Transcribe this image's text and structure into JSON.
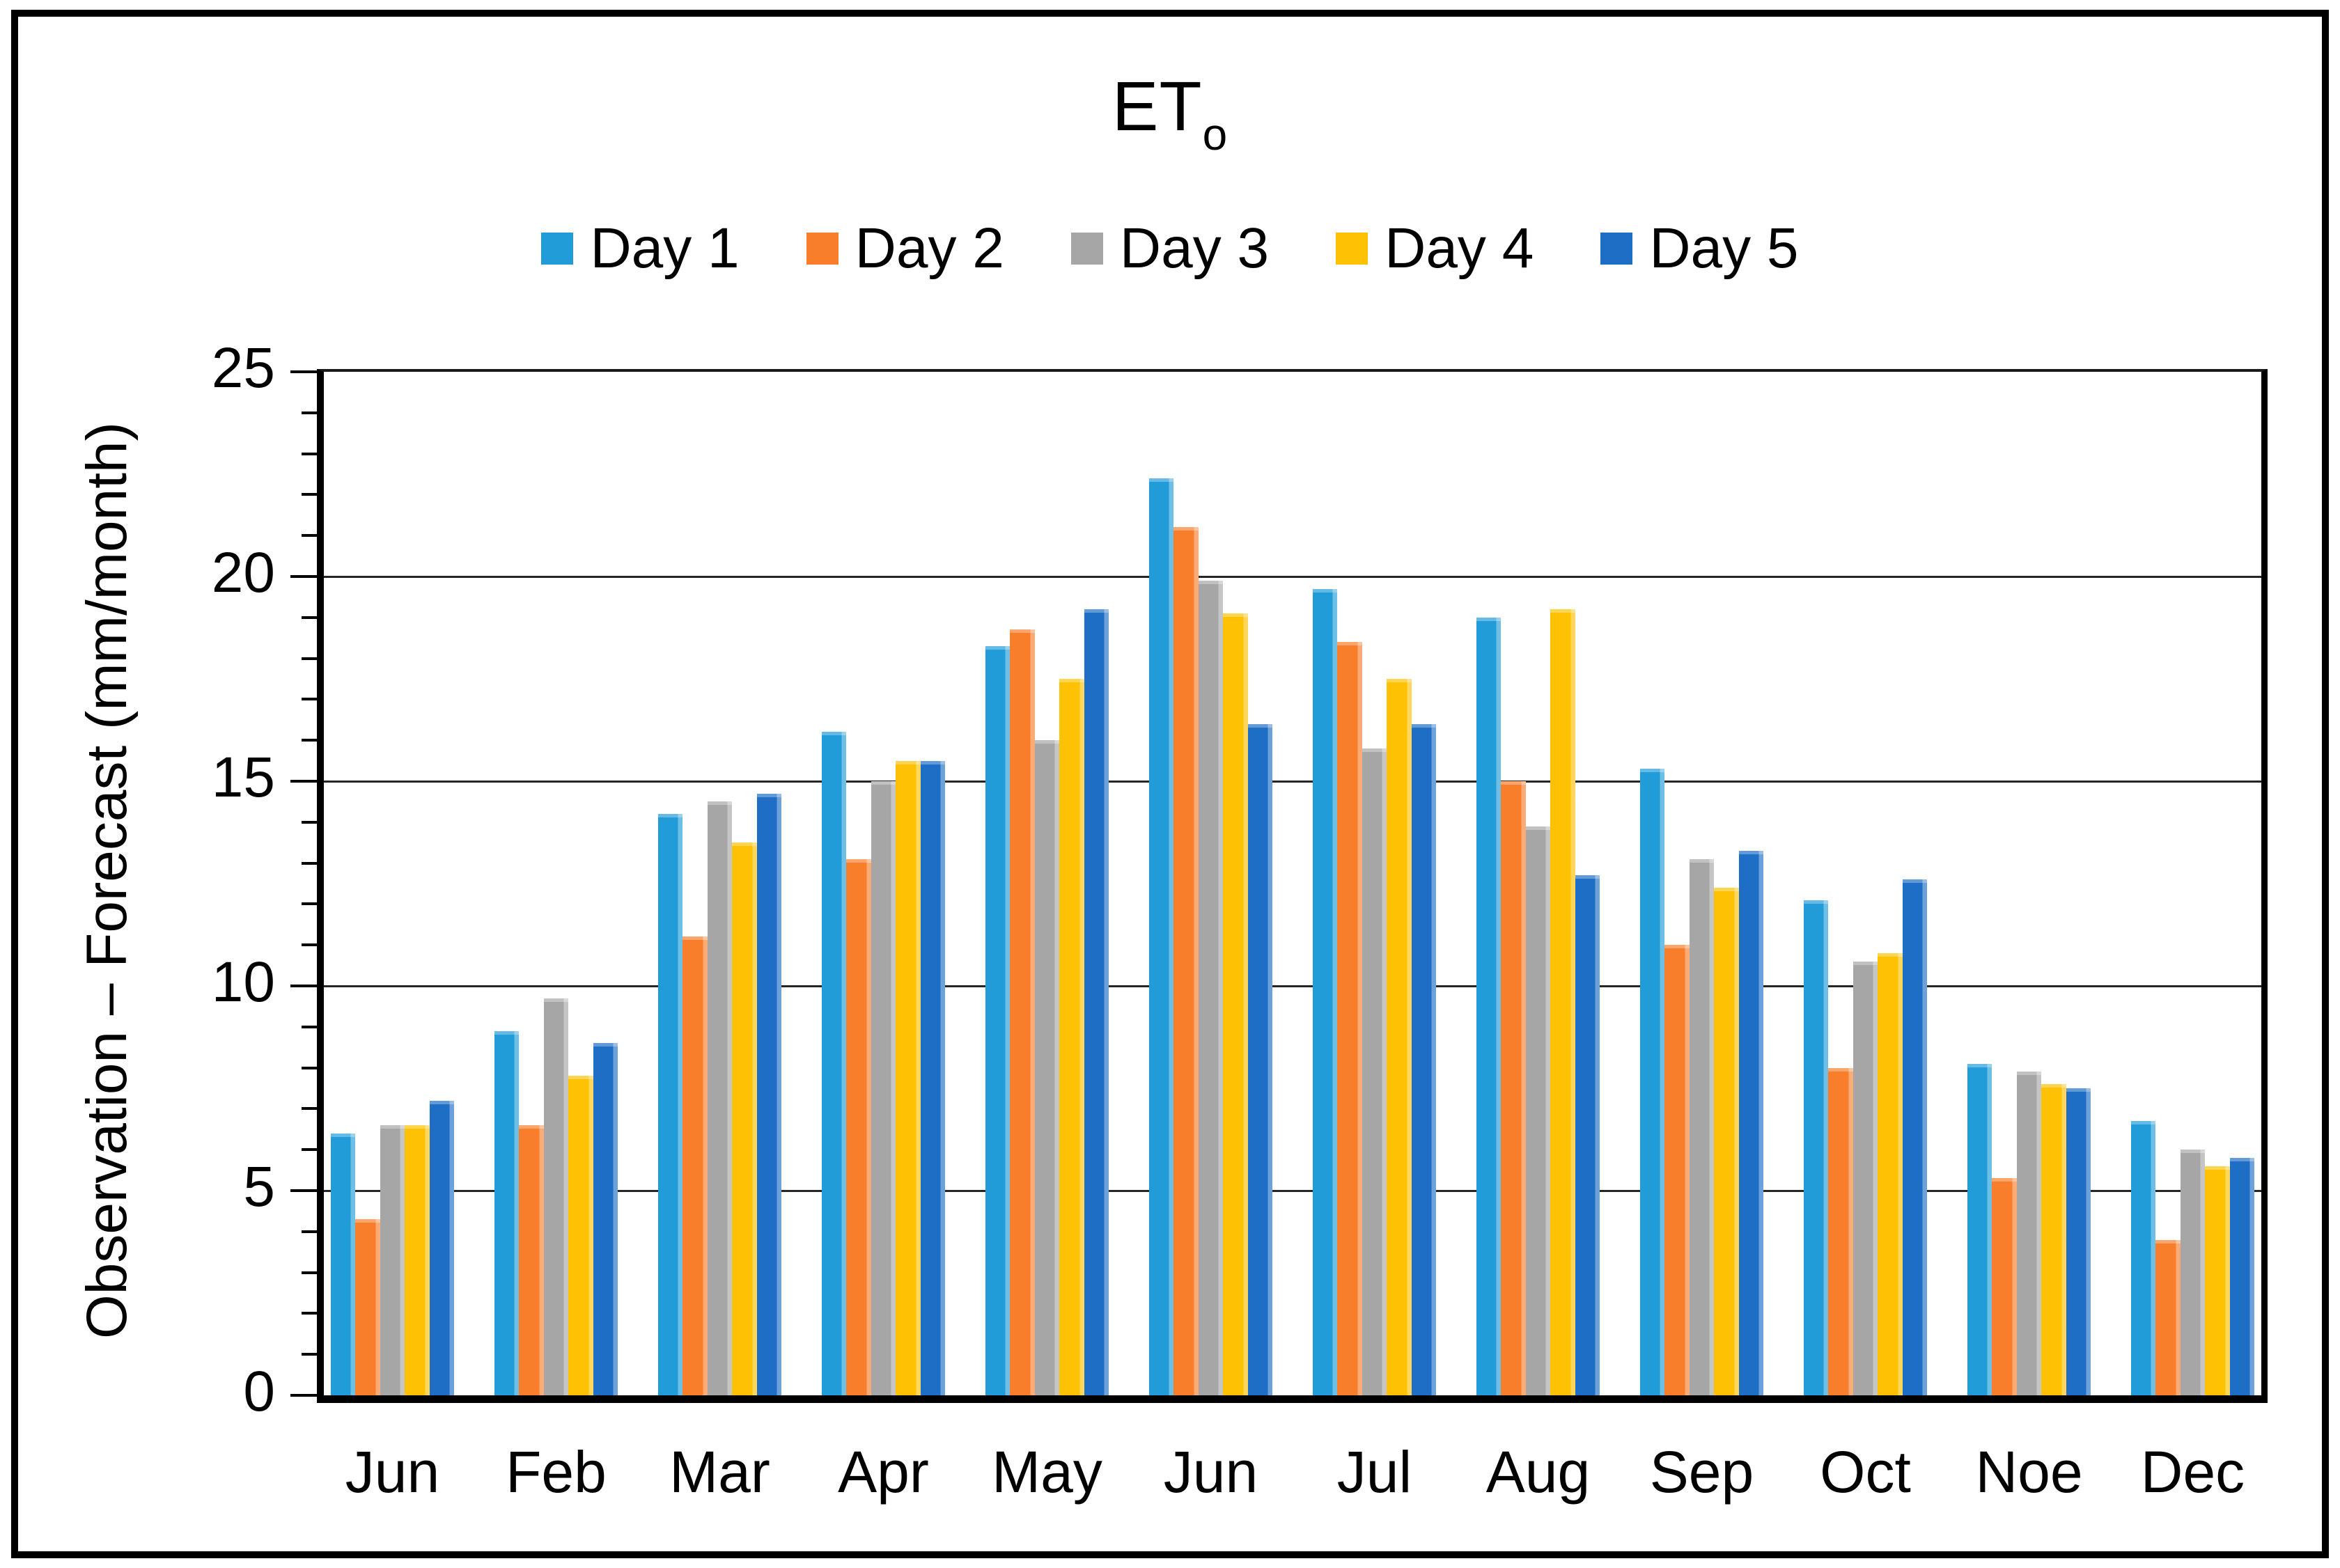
{
  "title": {
    "main": "ET",
    "subscript": "o"
  },
  "y_axis": {
    "title": "Observation – Forecast (mm/month)",
    "tick_labels": [
      "0",
      "5",
      "10",
      "15",
      "20",
      "25"
    ],
    "min": 0,
    "max": 25,
    "minor_tick_step": 1,
    "major_tick_step": 5
  },
  "legend": {
    "position": "top",
    "items": [
      {
        "label": "Day 1",
        "color": "#219CD9"
      },
      {
        "label": "Day 2",
        "color": "#F97E2B"
      },
      {
        "label": "Day 3",
        "color": "#A6A6A6"
      },
      {
        "label": "Day 4",
        "color": "#FFC103"
      },
      {
        "label": "Day 5",
        "color": "#1E6EC6"
      }
    ]
  },
  "chart_data": {
    "type": "bar",
    "title": "ETo",
    "ylabel": "Observation – Forecast (mm/month)",
    "xlabel": "",
    "ylim": [
      0,
      25
    ],
    "grid": true,
    "legend_position": "top",
    "categories": [
      "Jun",
      "Feb",
      "Mar",
      "Apr",
      "May",
      "Jun",
      "Jul",
      "Aug",
      "Sep",
      "Oct",
      "Noe",
      "Dec"
    ],
    "series": [
      {
        "name": "Day 1",
        "color": "#219CD9",
        "values": [
          6.4,
          8.9,
          14.2,
          16.2,
          18.3,
          22.4,
          19.7,
          19.0,
          15.3,
          12.1,
          8.1,
          6.7
        ]
      },
      {
        "name": "Day 2",
        "color": "#F97E2B",
        "values": [
          4.3,
          6.6,
          11.2,
          13.1,
          18.7,
          21.2,
          18.4,
          15.0,
          11.0,
          8.0,
          5.3,
          3.8
        ]
      },
      {
        "name": "Day 3",
        "color": "#A6A6A6",
        "values": [
          6.6,
          9.7,
          14.5,
          15.0,
          16.0,
          19.9,
          15.8,
          13.9,
          13.1,
          10.6,
          7.9,
          6.0
        ]
      },
      {
        "name": "Day 4",
        "color": "#FFC103",
        "values": [
          6.6,
          7.8,
          13.5,
          15.5,
          17.5,
          19.1,
          17.5,
          19.2,
          12.4,
          10.8,
          7.6,
          5.6
        ]
      },
      {
        "name": "Day 5",
        "color": "#1E6EC6",
        "values": [
          7.2,
          8.6,
          14.7,
          15.5,
          19.2,
          16.4,
          16.4,
          12.7,
          13.3,
          12.6,
          7.5,
          5.8
        ]
      }
    ]
  }
}
